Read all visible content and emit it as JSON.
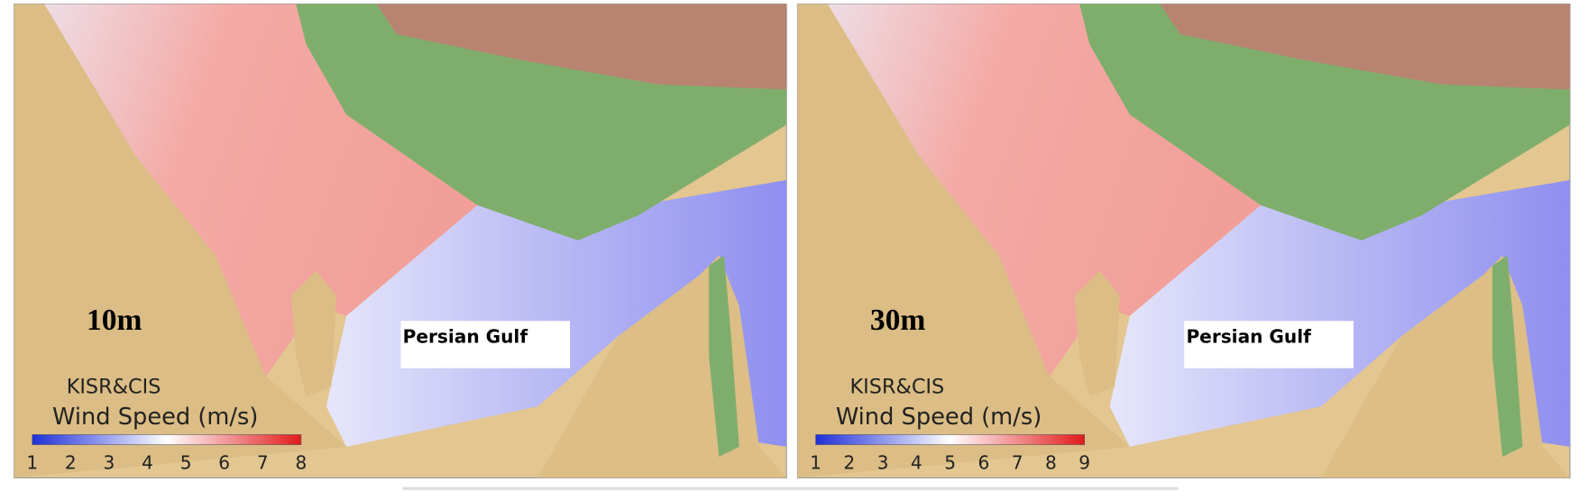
{
  "panels": [
    {
      "height_label": "10m",
      "region_label": "Persian Gulf",
      "credit": "KISR&CIS",
      "colorbar": {
        "title": "Wind Speed (m/s)",
        "range": [
          1,
          8
        ],
        "ticks": [
          1,
          2,
          3,
          4,
          5,
          6,
          7,
          8
        ]
      }
    },
    {
      "height_label": "30m",
      "region_label": "Persian Gulf",
      "credit": "KISR&CIS",
      "colorbar": {
        "title": "Wind Speed (m/s)",
        "range": [
          1,
          9
        ],
        "ticks": [
          1,
          2,
          3,
          4,
          5,
          6,
          7,
          8,
          9
        ]
      }
    }
  ]
}
